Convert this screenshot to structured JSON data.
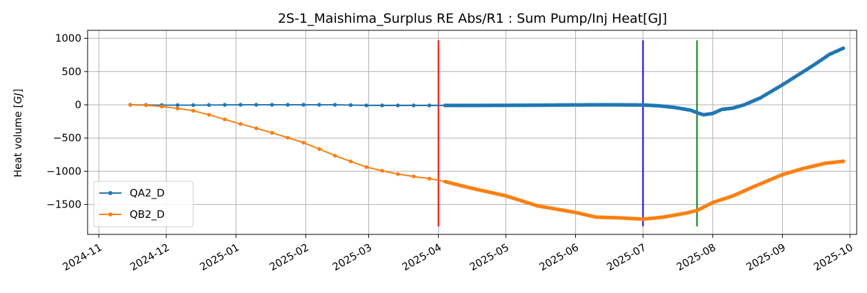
{
  "chart_data": {
    "type": "line",
    "title": "2S-1_Maishima_Surplus RE Abs/R1 : Sum Pump/Inj Heat[GJ]",
    "xlabel": "",
    "ylabel": "Heat volume [GJ]",
    "ylabel_plain": "Heat volume [",
    "ylabel_unit": "GJ",
    "ylabel_close": "]",
    "xlim": [
      "2024-10-27",
      "2025-10-04"
    ],
    "ylim": [
      -1950,
      1120
    ],
    "grid": true,
    "legend_position": "lower-left",
    "x_ticks": [
      "2024-11-01",
      "2024-12-01",
      "2025-01-01",
      "2025-02-01",
      "2025-03-01",
      "2025-04-01",
      "2025-05-01",
      "2025-06-01",
      "2025-07-01",
      "2025-08-01",
      "2025-09-01",
      "2025-10-01"
    ],
    "x_tick_labels": [
      "2024-11",
      "2024-12",
      "2025-01",
      "2025-02",
      "2025-03",
      "2025-04",
      "2025-05",
      "2025-06",
      "2025-07",
      "2025-08",
      "2025-09",
      "2025-10"
    ],
    "y_ticks": [
      1000,
      500,
      0,
      -500,
      -1000,
      -1500
    ],
    "y_tick_labels": [
      "1000",
      "500",
      "0",
      "−500",
      "−1000",
      "−1500"
    ],
    "series": [
      {
        "name": "QA2_D",
        "color": "#1f77b4",
        "points": [
          [
            "2024-11-15",
            0
          ],
          [
            "2024-11-30",
            -5
          ],
          [
            "2024-12-15",
            -5
          ],
          [
            "2025-01-01",
            0
          ],
          [
            "2025-01-15",
            0
          ],
          [
            "2025-02-01",
            0
          ],
          [
            "2025-02-15",
            0
          ],
          [
            "2025-03-01",
            -10
          ],
          [
            "2025-03-15",
            -10
          ],
          [
            "2025-04-01",
            -10
          ],
          [
            "2025-04-15",
            -10
          ],
          [
            "2025-05-01",
            -8
          ],
          [
            "2025-05-15",
            -6
          ],
          [
            "2025-06-01",
            -2
          ],
          [
            "2025-06-15",
            0
          ],
          [
            "2025-07-01",
            -3
          ],
          [
            "2025-07-08",
            -15
          ],
          [
            "2025-07-15",
            -40
          ],
          [
            "2025-07-22",
            -80
          ],
          [
            "2025-07-26",
            -130
          ],
          [
            "2025-07-28",
            -150
          ],
          [
            "2025-08-01",
            -130
          ],
          [
            "2025-08-05",
            -70
          ],
          [
            "2025-08-10",
            -50
          ],
          [
            "2025-08-15",
            0
          ],
          [
            "2025-08-22",
            100
          ],
          [
            "2025-09-01",
            300
          ],
          [
            "2025-09-08",
            450
          ],
          [
            "2025-09-15",
            600
          ],
          [
            "2025-09-22",
            760
          ],
          [
            "2025-09-28",
            850
          ]
        ]
      },
      {
        "name": "QB2_D",
        "color": "#ff7f0e",
        "points": [
          [
            "2024-11-15",
            0
          ],
          [
            "2024-11-25",
            -10
          ],
          [
            "2024-12-05",
            -50
          ],
          [
            "2024-12-15",
            -100
          ],
          [
            "2025-01-01",
            -270
          ],
          [
            "2025-01-15",
            -400
          ],
          [
            "2025-02-01",
            -580
          ],
          [
            "2025-02-15",
            -780
          ],
          [
            "2025-03-01",
            -950
          ],
          [
            "2025-03-15",
            -1050
          ],
          [
            "2025-04-01",
            -1130
          ],
          [
            "2025-04-15",
            -1250
          ],
          [
            "2025-05-01",
            -1370
          ],
          [
            "2025-05-15",
            -1520
          ],
          [
            "2025-06-01",
            -1620
          ],
          [
            "2025-06-10",
            -1690
          ],
          [
            "2025-06-20",
            -1700
          ],
          [
            "2025-07-01",
            -1720
          ],
          [
            "2025-07-10",
            -1690
          ],
          [
            "2025-07-20",
            -1630
          ],
          [
            "2025-07-25",
            -1590
          ],
          [
            "2025-08-01",
            -1470
          ],
          [
            "2025-08-10",
            -1370
          ],
          [
            "2025-08-20",
            -1220
          ],
          [
            "2025-09-01",
            -1050
          ],
          [
            "2025-09-10",
            -960
          ],
          [
            "2025-09-20",
            -880
          ],
          [
            "2025-09-28",
            -850
          ]
        ]
      }
    ],
    "vlines": [
      {
        "x": "2025-04-01",
        "ymin": -1830,
        "ymax": 970,
        "color": "#ff0000"
      },
      {
        "x": "2025-07-01",
        "ymin": -1830,
        "ymax": 970,
        "color": "#0000ff"
      },
      {
        "x": "2025-07-25",
        "ymin": -1830,
        "ymax": 970,
        "color": "#008000"
      }
    ]
  }
}
